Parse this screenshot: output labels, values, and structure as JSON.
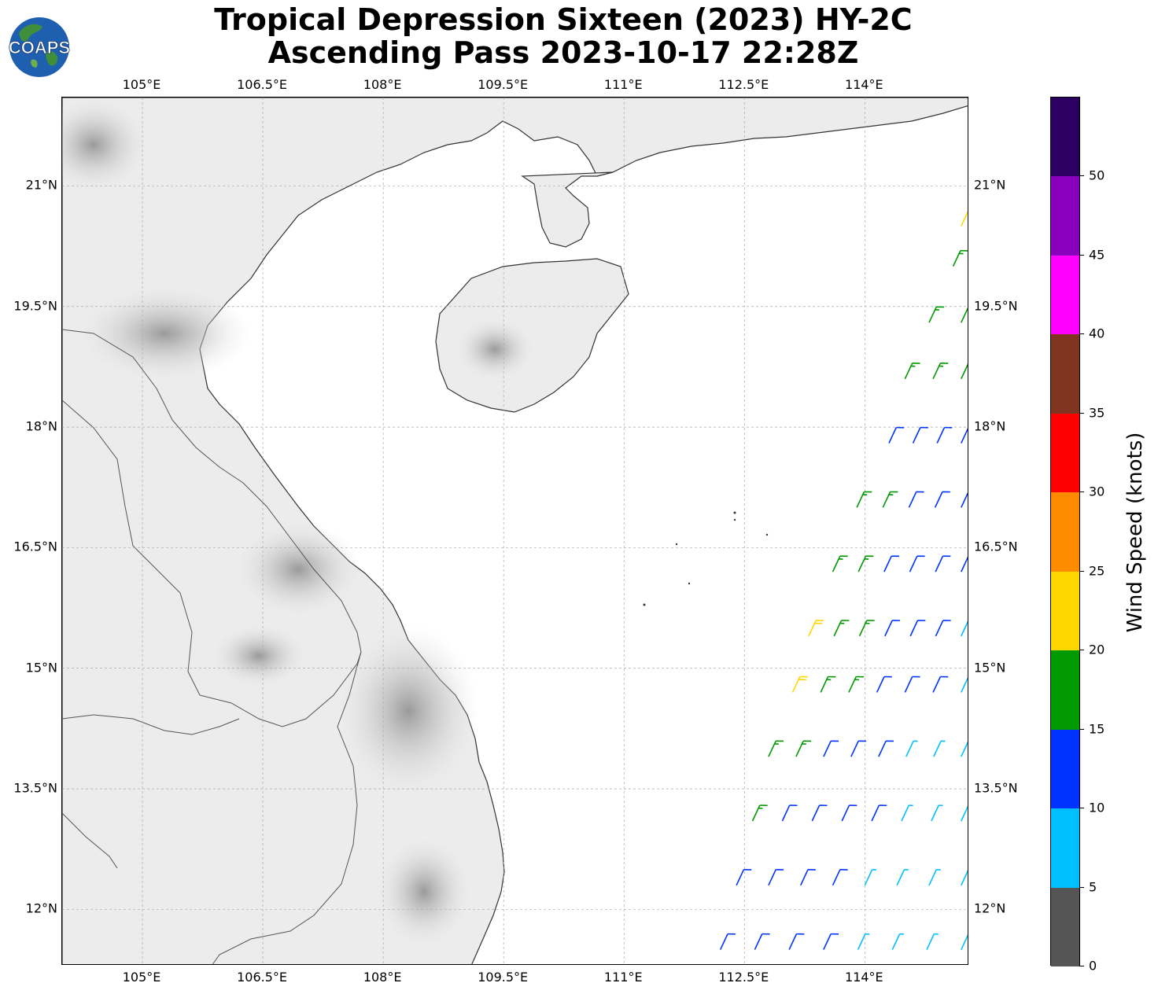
{
  "title": {
    "line1": "Tropical Depression Sixteen (2023) HY-2C",
    "line2": "Ascending Pass 2023-10-17 22:28Z"
  },
  "logo": {
    "text": "COAPS",
    "icon": "earth-globe-icon"
  },
  "map": {
    "lon_ticks": [
      "105°E",
      "106.5°E",
      "108°E",
      "109.5°E",
      "111°E",
      "112.5°E",
      "114°E"
    ],
    "lat_ticks": [
      "21°N",
      "19.5°N",
      "18°N",
      "16.5°N",
      "15°N",
      "13.5°N",
      "12°N"
    ],
    "lon_range": [
      104,
      115.3
    ],
    "lat_range": [
      11.3,
      22.1
    ],
    "colors": {
      "land": "#e9e9e9",
      "ocean": "#ffffff",
      "coastline": "#333333",
      "grid": "#aaaaaa"
    }
  },
  "colorbar": {
    "label": "Wind Speed (knots)",
    "ticks": [
      "0",
      "5",
      "10",
      "15",
      "20",
      "25",
      "30",
      "35",
      "40",
      "45",
      "50"
    ],
    "bins": [
      {
        "from": 0,
        "to": 5,
        "color": "#555555"
      },
      {
        "from": 5,
        "to": 10,
        "color": "#00bfff"
      },
      {
        "from": 10,
        "to": 15,
        "color": "#0033ff"
      },
      {
        "from": 15,
        "to": 20,
        "color": "#009900"
      },
      {
        "from": 20,
        "to": 25,
        "color": "#ffd700"
      },
      {
        "from": 25,
        "to": 30,
        "color": "#ff8c00"
      },
      {
        "from": 30,
        "to": 35,
        "color": "#ff0000"
      },
      {
        "from": 35,
        "to": 40,
        "color": "#803520"
      },
      {
        "from": 40,
        "to": 45,
        "color": "#ff00ff"
      },
      {
        "from": 45,
        "to": 50,
        "color": "#8800bb"
      },
      {
        "from": 50,
        "to": 55,
        "color": "#2b0060"
      }
    ]
  },
  "swath_winds": {
    "description_units": "knots",
    "rows": [
      {
        "lat": 11.5,
        "lon_start": 112.2,
        "lon_end": 115.2,
        "speeds": [
          12,
          12,
          11,
          10,
          9,
          8,
          7,
          7
        ]
      },
      {
        "lat": 12.3,
        "lon_start": 112.4,
        "lon_end": 115.2,
        "speeds": [
          13,
          12,
          11,
          10,
          9,
          8,
          7,
          7
        ]
      },
      {
        "lat": 13.1,
        "lon_start": 112.6,
        "lon_end": 115.2,
        "speeds": [
          16,
          13,
          12,
          11,
          10,
          9,
          8,
          7
        ]
      },
      {
        "lat": 13.9,
        "lon_start": 112.8,
        "lon_end": 115.2,
        "speeds": [
          17,
          16,
          12,
          11,
          10,
          9,
          8,
          7
        ]
      },
      {
        "lat": 14.7,
        "lon_start": 113.1,
        "lon_end": 115.2,
        "speeds": [
          21,
          17,
          16,
          12,
          11,
          10,
          8
        ]
      },
      {
        "lat": 15.4,
        "lon_start": 113.3,
        "lon_end": 115.2,
        "speeds": [
          21,
          17,
          16,
          13,
          12,
          10,
          9
        ]
      },
      {
        "lat": 16.2,
        "lon_start": 113.6,
        "lon_end": 115.2,
        "speeds": [
          17,
          16,
          13,
          12,
          11,
          10
        ]
      },
      {
        "lat": 17.0,
        "lon_start": 113.9,
        "lon_end": 115.2,
        "speeds": [
          16,
          16,
          13,
          12,
          11
        ]
      },
      {
        "lat": 17.8,
        "lon_start": 114.3,
        "lon_end": 115.2,
        "speeds": [
          13,
          13,
          12,
          12
        ]
      },
      {
        "lat": 18.6,
        "lon_start": 114.5,
        "lon_end": 115.2,
        "speeds": [
          16,
          17,
          17
        ]
      },
      {
        "lat": 19.3,
        "lon_start": 114.8,
        "lon_end": 115.2,
        "speeds": [
          17,
          17
        ]
      },
      {
        "lat": 20.0,
        "lon_start": 115.1,
        "lon_end": 115.2,
        "speeds": [
          17
        ]
      },
      {
        "lat": 20.5,
        "lon_start": 115.2,
        "lon_end": 115.2,
        "speeds": [
          22
        ]
      }
    ]
  }
}
